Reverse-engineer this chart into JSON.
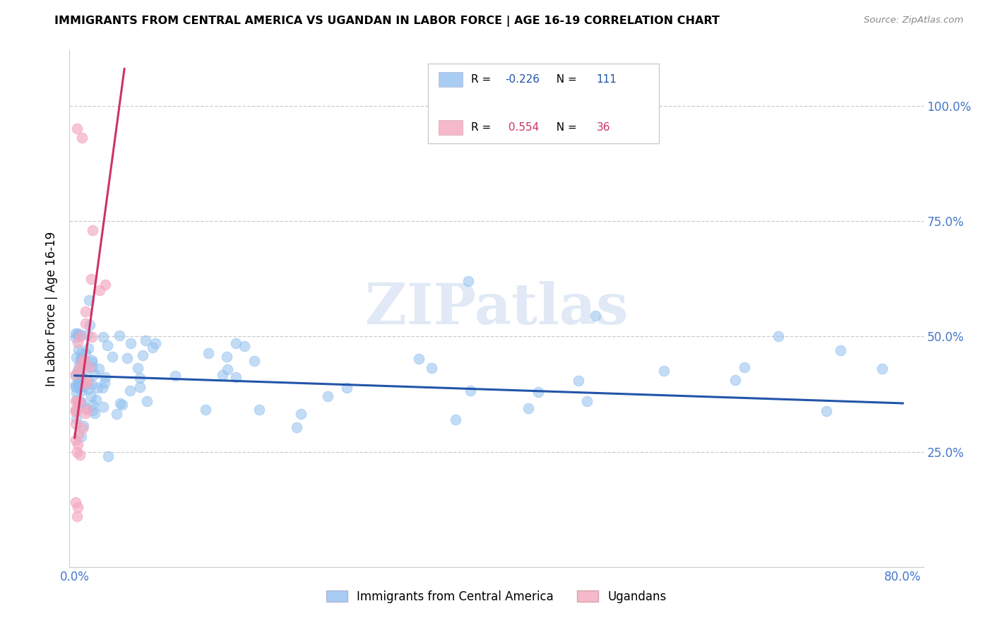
{
  "title": "IMMIGRANTS FROM CENTRAL AMERICA VS UGANDAN IN LABOR FORCE | AGE 16-19 CORRELATION CHART",
  "source": "Source: ZipAtlas.com",
  "ylabel": "In Labor Force | Age 16-19",
  "xlim": [
    -0.005,
    0.82
  ],
  "ylim": [
    0.0,
    1.12
  ],
  "xtick_positions": [
    0.0,
    0.2,
    0.4,
    0.6,
    0.8
  ],
  "xticklabels": [
    "0.0%",
    "",
    "",
    "",
    "80.0%"
  ],
  "ytick_positions": [
    0.0,
    0.25,
    0.5,
    0.75,
    1.0
  ],
  "yticklabels_right": [
    "",
    "25.0%",
    "50.0%",
    "75.0%",
    "100.0%"
  ],
  "blue_R": -0.226,
  "blue_N": 111,
  "pink_R": 0.554,
  "pink_N": 36,
  "blue_color": "#92c0f0",
  "pink_color": "#f4a8c0",
  "blue_line_color": "#2255aa",
  "pink_line_color": "#cc3366",
  "legend_label_blue": "Immigrants from Central America",
  "legend_label_pink": "Ugandans",
  "watermark": "ZIPatlas",
  "blue_line_x0": 0.0,
  "blue_line_x1": 0.8,
  "blue_line_y0": 0.415,
  "blue_line_y1": 0.355,
  "pink_line_x0": 0.0,
  "pink_line_x1": 0.048,
  "pink_line_y0": 0.28,
  "pink_line_y1": 1.08
}
